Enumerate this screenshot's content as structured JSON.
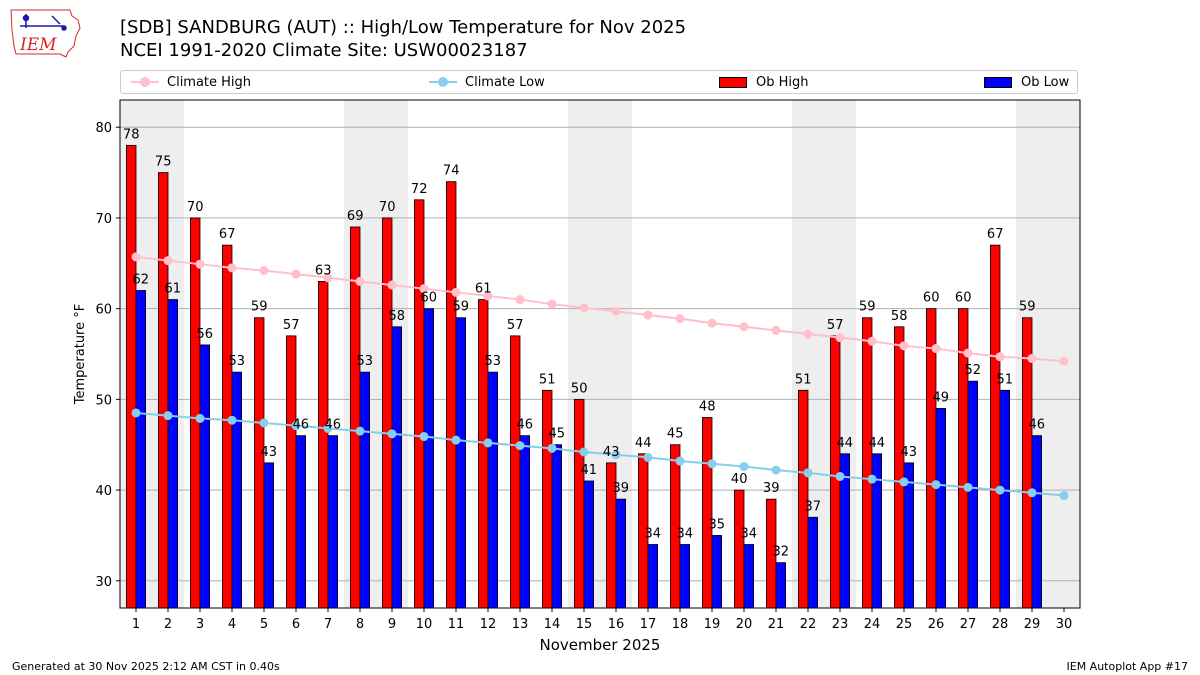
{
  "header": {
    "title_line1": "[SDB] SANDBURG (AUT) :: High/Low Temperature for Nov 2025",
    "title_line2": "NCEI 1991-2020 Climate Site: USW00023187",
    "logo_text": "IEM"
  },
  "legend": {
    "climate_high": "Climate High",
    "climate_low": "Climate Low",
    "ob_high": "Ob High",
    "ob_low": "Ob Low"
  },
  "colors": {
    "ob_high": "#ff0000",
    "ob_low": "#0000ff",
    "climate_high": "#ffc0cb",
    "climate_low": "#87ceeb",
    "weekend_shade": "#eeeeee",
    "grid": "#b0b0b0"
  },
  "chart_data": {
    "type": "bar",
    "title": "[SDB] SANDBURG (AUT) :: High/Low Temperature for Nov 2025",
    "xlabel": "November 2025",
    "ylabel": "Temperature °F",
    "ylim": [
      27,
      83
    ],
    "yticks": [
      30,
      40,
      50,
      60,
      70,
      80
    ],
    "grid": true,
    "legend_position": "top",
    "categories": [
      "1",
      "2",
      "3",
      "4",
      "5",
      "6",
      "7",
      "8",
      "9",
      "10",
      "11",
      "12",
      "13",
      "14",
      "15",
      "16",
      "17",
      "18",
      "19",
      "20",
      "21",
      "22",
      "23",
      "24",
      "25",
      "26",
      "27",
      "28",
      "29",
      "30"
    ],
    "shaded_weekend_days": [
      1,
      2,
      8,
      9,
      15,
      16,
      22,
      23,
      29,
      30
    ],
    "series": [
      {
        "name": "Ob High",
        "kind": "bar",
        "values": [
          78,
          75,
          70,
          67,
          59,
          57,
          63,
          69,
          70,
          72,
          74,
          61,
          57,
          51,
          50,
          43,
          44,
          45,
          48,
          40,
          39,
          51,
          57,
          59,
          58,
          60,
          60,
          67,
          59,
          null
        ]
      },
      {
        "name": "Ob Low",
        "kind": "bar",
        "values": [
          62,
          61,
          56,
          53,
          43,
          46,
          46,
          53,
          58,
          60,
          59,
          53,
          46,
          45,
          41,
          39,
          34,
          34,
          35,
          34,
          32,
          37,
          44,
          44,
          43,
          49,
          52,
          51,
          46,
          null
        ]
      },
      {
        "name": "Climate High",
        "kind": "line",
        "values": [
          65.7,
          65.3,
          64.9,
          64.5,
          64.2,
          63.8,
          63.4,
          63.0,
          62.6,
          62.2,
          61.8,
          61.4,
          61.0,
          60.5,
          60.1,
          59.7,
          59.3,
          58.9,
          58.4,
          58.0,
          57.6,
          57.2,
          56.8,
          56.4,
          55.9,
          55.6,
          55.1,
          54.7,
          54.5,
          54.2
        ]
      },
      {
        "name": "Climate Low",
        "kind": "line",
        "values": [
          48.5,
          48.2,
          47.9,
          47.7,
          47.4,
          47.1,
          46.8,
          46.5,
          46.2,
          45.9,
          45.5,
          45.2,
          44.9,
          44.6,
          44.2,
          43.9,
          43.6,
          43.2,
          42.9,
          42.6,
          42.2,
          41.9,
          41.5,
          41.2,
          40.9,
          40.6,
          40.3,
          40.0,
          39.7,
          39.4
        ]
      }
    ]
  },
  "footer": {
    "generated": "Generated at 30 Nov 2025 2:12 AM CST in 0.40s",
    "app": "IEM Autoplot App #17"
  }
}
